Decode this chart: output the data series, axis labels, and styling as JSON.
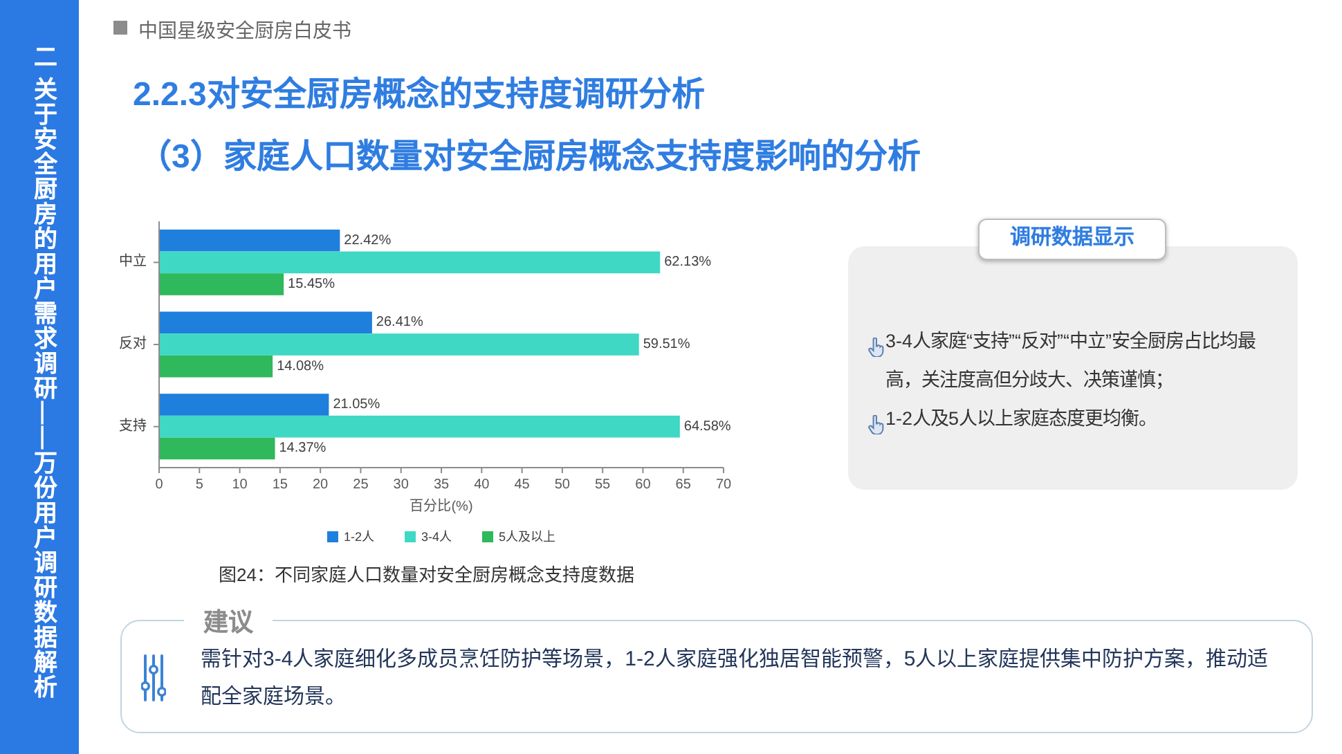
{
  "chart_data": [
    {
      "type": "bar",
      "orientation": "horizontal",
      "title": "2.2.3对安全厨房概念的支持度调研分析",
      "subtitle": "（3）家庭人口数量对安全厨房概念支持度影响的分析",
      "xlabel": "百分比(%)",
      "categories": [
        "中立",
        "反对",
        "支持"
      ],
      "series": [
        {
          "name": "1-2人",
          "color": "#1f7fdc",
          "values": [
            22.42,
            26.41,
            21.05
          ],
          "value_labels": [
            "22.42%",
            "26.41%",
            "21.05%"
          ]
        },
        {
          "name": "3-4人",
          "color": "#3fd8c5",
          "values": [
            62.13,
            59.51,
            64.58
          ],
          "value_labels": [
            "62.13%",
            "59.51%",
            "64.58%"
          ]
        },
        {
          "name": "5人及以上",
          "color": "#2fb85c",
          "values": [
            15.45,
            14.08,
            14.37
          ],
          "value_labels": [
            "15.45%",
            "14.08%",
            "14.37%"
          ]
        }
      ],
      "xlim": [
        0,
        70
      ],
      "xticks": [
        0,
        5,
        10,
        15,
        20,
        25,
        30,
        35,
        40,
        45,
        50,
        55,
        60,
        65,
        70
      ],
      "legend": "bottom",
      "annotations": [
        "中国星级安全厨房白皮书",
        "二 关于安全厨房的用户需求调研——万份用户调研数据解析",
        "图24：不同家庭人口数量对安全厨房概念支持度数据"
      ]
    },
    {
      "type": "other",
      "title": "调研数据显示",
      "annotations": [
        "3-4人家庭“支持”“反对”“中立”安全厨房占比均最高，关注度高但分歧大、决策谨慎；",
        "1-2人及5人以上家庭态度更均衡。"
      ]
    },
    {
      "type": "other",
      "title": "建议",
      "annotations": [
        "需针对3-4人家庭细化多成员烹饪防护等场景，1-2人家庭强化独居智能预警，5人以上家庭提供集中防护方案，推动适配全家庭场景。"
      ]
    }
  ]
}
